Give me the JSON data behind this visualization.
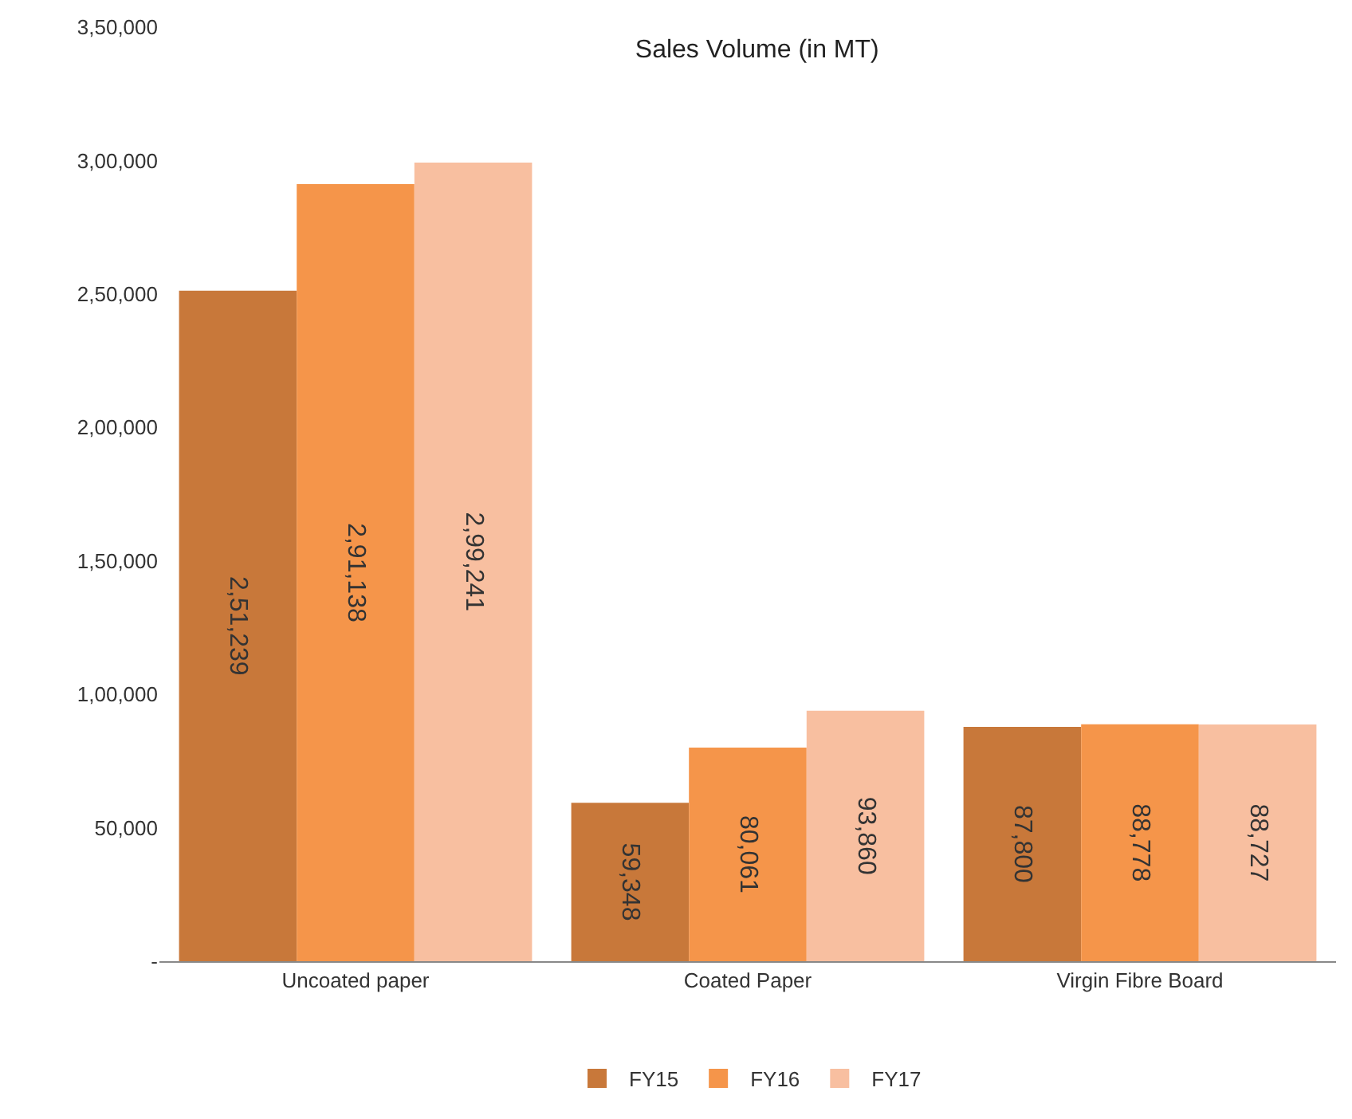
{
  "chart_data": {
    "type": "bar",
    "title": "Sales Volume (in MT)",
    "categories": [
      "Uncoated paper",
      "Coated Paper",
      "Virgin Fibre Board"
    ],
    "series": [
      {
        "name": "FY15",
        "color": "#c8783a",
        "values": [
          251239,
          59348,
          87800
        ],
        "value_labels": [
          "2,51,239",
          "59,348",
          "87,800"
        ]
      },
      {
        "name": "FY16",
        "color": "#f5954a",
        "values": [
          291138,
          80061,
          88778
        ],
        "value_labels": [
          "2,91,138",
          "80,061",
          "88,778"
        ]
      },
      {
        "name": "FY17",
        "color": "#f8bfa0",
        "values": [
          299241,
          93860,
          88727
        ],
        "value_labels": [
          "2,99,241",
          "93,860",
          "88,727"
        ]
      }
    ],
    "ylim": [
      0,
      350000
    ],
    "yticks": [
      {
        "value": 0,
        "label": "-"
      },
      {
        "value": 50000,
        "label": "50,000"
      },
      {
        "value": 100000,
        "label": "1,00,000"
      },
      {
        "value": 150000,
        "label": "1,50,000"
      },
      {
        "value": 200000,
        "label": "2,00,000"
      },
      {
        "value": 250000,
        "label": "2,50,000"
      },
      {
        "value": 300000,
        "label": "3,00,000"
      },
      {
        "value": 350000,
        "label": "3,50,000"
      }
    ],
    "legend": "bottom"
  }
}
